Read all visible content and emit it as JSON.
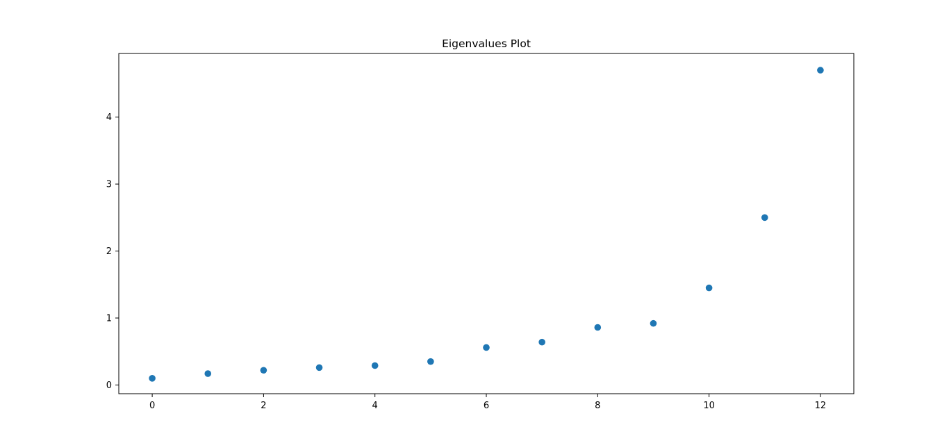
{
  "chart_data": {
    "type": "scatter",
    "title": "Eigenvalues Plot",
    "xlabel": "",
    "ylabel": "",
    "xlim": [
      -0.6,
      12.6
    ],
    "ylim": [
      -0.13,
      4.95
    ],
    "xticks": [
      0,
      2,
      4,
      6,
      8,
      10,
      12
    ],
    "yticks": [
      0,
      1,
      2,
      3,
      4
    ],
    "grid": false,
    "legend": "none",
    "marker_color": "#1f77b4",
    "series": [
      {
        "x": [
          0,
          1,
          2,
          3,
          4,
          5,
          6,
          7,
          8,
          9,
          10,
          11,
          12
        ],
        "y": [
          0.1,
          0.17,
          0.22,
          0.26,
          0.29,
          0.35,
          0.56,
          0.64,
          0.86,
          0.92,
          1.45,
          2.5,
          4.7
        ]
      }
    ]
  }
}
